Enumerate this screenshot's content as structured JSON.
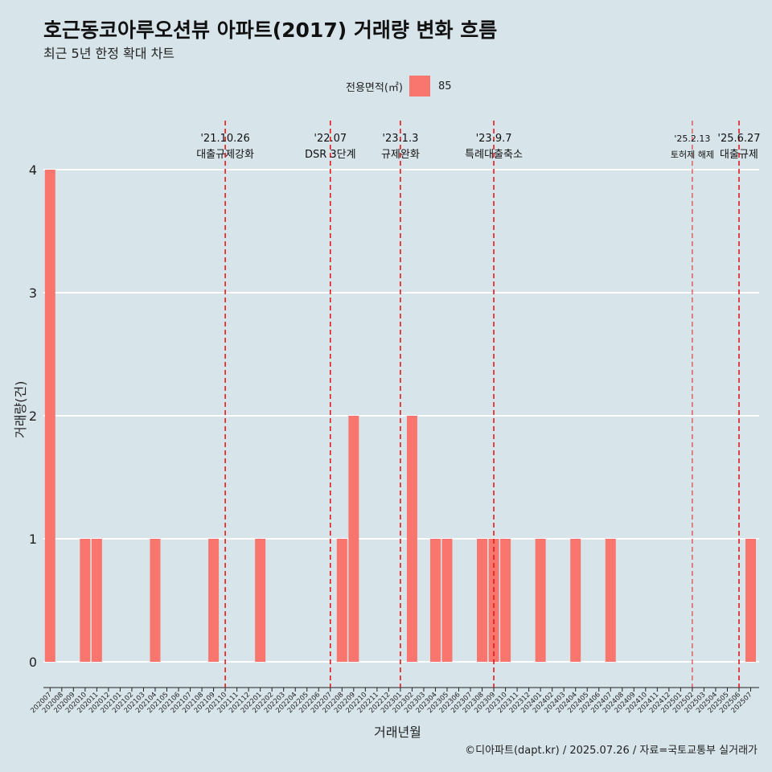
{
  "title": "호근동코아루오션뷰 아파트(2017) 거래량 변화 흐름",
  "subtitle": "최근 5년 한정 확대 차트",
  "legend_title": "전용면적(㎡)",
  "legend_color": "#f8766d",
  "caption": "©디아파트(dapt.kr) / 2025.07.26 / 자료=국토교통부 실거래가",
  "chart_data": {
    "type": "bar",
    "xlabel": "거래년월",
    "ylabel": "거래량(건)",
    "ylim": [
      0,
      4
    ],
    "yticks": [
      0,
      1,
      2,
      3,
      4
    ],
    "grid": true,
    "legend_position": "top",
    "categories": [
      "202007",
      "202008",
      "202009",
      "202010",
      "202011",
      "202012",
      "202101",
      "202102",
      "202103",
      "202104",
      "202105",
      "202106",
      "202107",
      "202108",
      "202109",
      "202110",
      "202111",
      "202112",
      "202201",
      "202202",
      "202203",
      "202204",
      "202205",
      "202206",
      "202207",
      "202208",
      "202209",
      "202210",
      "202211",
      "202212",
      "202301",
      "202302",
      "202303",
      "202304",
      "202305",
      "202306",
      "202307",
      "202308",
      "202309",
      "202310",
      "202311",
      "202312",
      "202401",
      "202402",
      "202403",
      "202404",
      "202405",
      "202406",
      "202407",
      "202408",
      "202409",
      "202410",
      "202411",
      "202412",
      "202501",
      "202502",
      "202503",
      "202504",
      "202505",
      "202506",
      "202507"
    ],
    "series": [
      {
        "name": "85",
        "color": "#f8766d",
        "values": [
          4,
          0,
          0,
          1,
          1,
          0,
          0,
          0,
          0,
          1,
          0,
          0,
          0,
          0,
          1,
          0,
          0,
          0,
          1,
          0,
          0,
          0,
          0,
          0,
          0,
          1,
          2,
          0,
          0,
          0,
          0,
          2,
          0,
          1,
          1,
          0,
          0,
          1,
          1,
          1,
          0,
          0,
          1,
          0,
          0,
          1,
          0,
          0,
          1,
          0,
          0,
          0,
          0,
          0,
          0,
          0,
          0,
          0,
          0,
          0,
          1
        ]
      }
    ],
    "annotations": [
      {
        "category": "202110",
        "date": "'21.10.26",
        "label": "대출규제강화",
        "small": false
      },
      {
        "category": "202207",
        "date": "'22.07",
        "label": "DSR 3단계",
        "small": false
      },
      {
        "category": "202301",
        "date": "'23.1.3",
        "label": "규제완화",
        "small": false
      },
      {
        "category": "202309",
        "date": "'23.9.7",
        "label": "특례대출축소",
        "small": false
      },
      {
        "category": "202502",
        "date": "'25.2.13",
        "label": "토허제 해제",
        "small": true
      },
      {
        "category": "202506",
        "date": "'25.6.27",
        "label": "대출규제",
        "small": false
      }
    ]
  }
}
